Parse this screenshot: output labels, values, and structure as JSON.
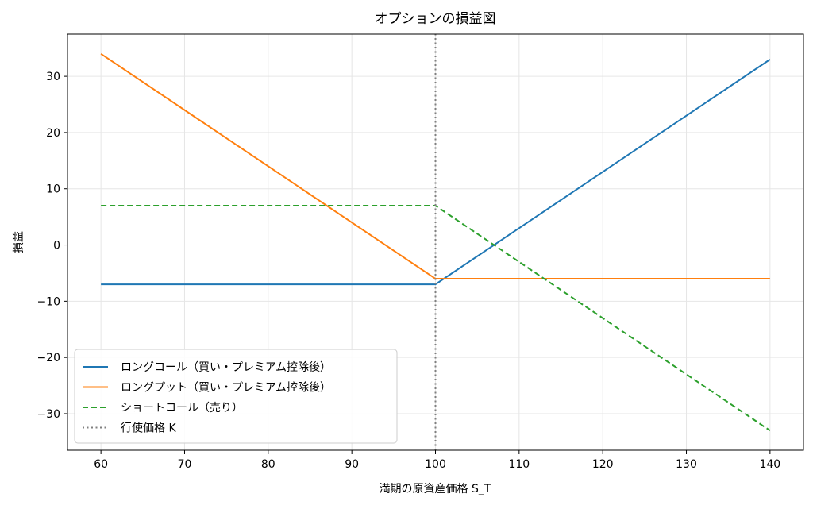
{
  "chart_data": {
    "type": "line",
    "title": "オプションの損益図",
    "xlabel": "満期の原資産価格 S_T",
    "ylabel": "損益",
    "xlim": [
      56,
      144
    ],
    "ylim": [
      -36.5,
      37.5
    ],
    "xticks": [
      60,
      70,
      80,
      90,
      100,
      110,
      120,
      130,
      140
    ],
    "yticks": [
      30,
      20,
      10,
      0,
      -10,
      -20,
      -30
    ],
    "ytick_labels": [
      "30",
      "20",
      "10",
      "0",
      "−10",
      "−20",
      "−30"
    ],
    "grid": true,
    "legend_position": "lower-left",
    "zero_line": true,
    "strike": 100,
    "series": [
      {
        "name": "ロングコール（買い・プレミアム控除後）",
        "color": "#1f77b4",
        "style": "solid",
        "x": [
          60,
          100,
          140
        ],
        "y": [
          -7,
          -7,
          33
        ]
      },
      {
        "name": "ロングプット（買い・プレミアム控除後）",
        "color": "#ff7f0e",
        "style": "solid",
        "x": [
          60,
          100,
          140
        ],
        "y": [
          34,
          -6,
          -6
        ]
      },
      {
        "name": "ショートコール（売り）",
        "color": "#2ca02c",
        "style": "dashed",
        "x": [
          60,
          100,
          140
        ],
        "y": [
          7,
          7,
          -33
        ]
      },
      {
        "name": "行使価格 K",
        "color": "#808080",
        "style": "dotted",
        "x": [
          100,
          100
        ],
        "y": [
          -36.5,
          37.5
        ]
      }
    ]
  }
}
